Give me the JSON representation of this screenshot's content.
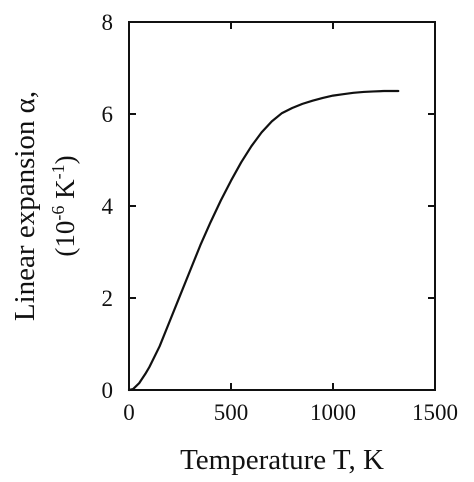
{
  "chart_data": {
    "type": "line",
    "title": "",
    "xlabel": "Temperature T, K",
    "ylabel": {
      "line1": "Linear expansion α,",
      "line2_prefix": "(10",
      "line2_exp1": "-6",
      "line2_mid": " K",
      "line2_exp2": "-1",
      "line2_suffix": ")"
    },
    "xlim": [
      0,
      1500
    ],
    "ylim": [
      0,
      8
    ],
    "xticks": [
      0,
      500,
      1000,
      1500
    ],
    "yticks": [
      0,
      2,
      4,
      6,
      8
    ],
    "xtick_labels": [
      "0",
      "500",
      "1000",
      "1500"
    ],
    "ytick_labels": [
      "0",
      "2",
      "4",
      "6",
      "8"
    ],
    "grid": false,
    "series": [
      {
        "x": [
          0,
          20,
          50,
          80,
          100,
          150,
          200,
          250,
          300,
          350,
          400,
          450,
          500,
          550,
          600,
          650,
          700,
          750,
          800,
          850,
          900,
          950,
          1000,
          1050,
          1100,
          1150,
          1200,
          1250,
          1300,
          1320
        ],
        "y": [
          0,
          0.02,
          0.15,
          0.35,
          0.5,
          0.95,
          1.5,
          2.05,
          2.6,
          3.15,
          3.65,
          4.12,
          4.55,
          4.95,
          5.3,
          5.6,
          5.84,
          6.02,
          6.13,
          6.22,
          6.29,
          6.35,
          6.4,
          6.43,
          6.46,
          6.48,
          6.49,
          6.5,
          6.5,
          6.5
        ]
      }
    ]
  }
}
